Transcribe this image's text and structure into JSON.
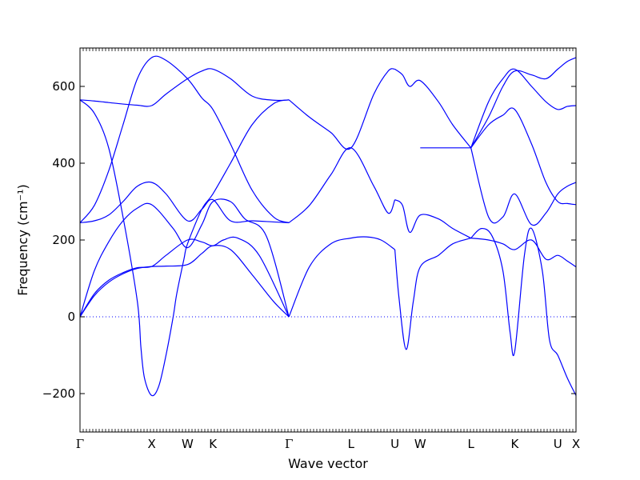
{
  "chart_data": {
    "type": "line",
    "title": "",
    "xlabel": "Wave vector",
    "ylabel": "Frequency (cm⁻¹)",
    "ylim": [
      -300,
      700
    ],
    "yticks": [
      -200,
      0,
      200,
      400,
      600
    ],
    "ytick_labels": [
      "−200",
      "0",
      "200",
      "400",
      "600"
    ],
    "grid": false,
    "legend": "none",
    "line_color": "#0000ff",
    "zero_line_color": "#0000ff",
    "special_points": [
      {
        "label": "Γ",
        "x": 0.0
      },
      {
        "label": "X",
        "x": 1.0
      },
      {
        "label": "W",
        "x": 1.5
      },
      {
        "label": "K",
        "x": 1.854
      },
      {
        "label": "Γ",
        "x": 2.915
      },
      {
        "label": "L",
        "x": 3.781
      },
      {
        "label": "U",
        "x": 4.393
      },
      {
        "label": "W",
        "x": 4.747
      },
      {
        "label": "L",
        "x": 5.454
      },
      {
        "label": "K",
        "x": 6.065
      },
      {
        "label": "U",
        "x": 6.666
      },
      {
        "label": "X",
        "x": 6.92
      }
    ],
    "xlim": [
      0.0,
      6.92
    ],
    "series": [
      {
        "x": [
          0.0,
          0.2,
          0.4,
          0.6,
          0.8,
          1.0,
          1.2,
          1.5,
          1.7,
          1.854,
          2.1,
          2.4,
          2.7,
          2.915
        ],
        "values": [
          0,
          55,
          90,
          112,
          126,
          131,
          132,
          136,
          165,
          185,
          175,
          110,
          40,
          0
        ]
      },
      {
        "x": [
          0.0,
          0.2,
          0.4,
          0.6,
          0.8,
          1.0,
          1.2,
          1.5,
          1.7,
          1.854,
          2.0,
          2.2,
          2.5,
          2.915
        ],
        "values": [
          0,
          60,
          95,
          115,
          128,
          131,
          160,
          200,
          195,
          185,
          200,
          205,
          160,
          0
        ]
      },
      {
        "x": [
          0.0,
          0.2,
          0.4,
          0.6,
          0.8,
          1.0,
          1.3,
          1.5,
          1.7,
          1.854,
          2.1,
          2.3,
          2.6,
          2.915
        ],
        "values": [
          0,
          120,
          195,
          250,
          283,
          292,
          230,
          180,
          240,
          300,
          300,
          255,
          210,
          0
        ]
      },
      {
        "x": [
          0.0,
          0.2,
          0.4,
          0.6,
          0.8,
          0.85,
          0.9,
          1.0,
          1.1,
          1.2,
          1.3,
          1.35,
          1.45,
          1.5,
          1.7,
          1.854,
          2.1,
          2.4,
          2.7,
          2.915
        ],
        "values": [
          565,
          530,
          440,
          260,
          40,
          -80,
          -160,
          -205,
          -180,
          -100,
          0,
          60,
          150,
          190,
          280,
          320,
          400,
          500,
          555,
          565
        ]
      },
      {
        "x": [
          0.0,
          0.2,
          0.4,
          0.6,
          0.8,
          1.0,
          1.2,
          1.5,
          1.7,
          1.854,
          2.1,
          2.4,
          2.7,
          2.915
        ],
        "values": [
          565,
          562,
          558,
          554,
          551,
          550,
          580,
          620,
          640,
          645,
          620,
          575,
          564,
          565
        ]
      },
      {
        "x": [
          0.0,
          0.2,
          0.4,
          0.6,
          0.8,
          1.0,
          1.2,
          1.5,
          1.7,
          1.854,
          2.1,
          2.4,
          2.7,
          2.915
        ],
        "values": [
          245,
          290,
          380,
          500,
          620,
          675,
          668,
          620,
          570,
          540,
          450,
          330,
          260,
          245
        ]
      },
      {
        "x": [
          0.0,
          0.2,
          0.4,
          0.6,
          0.8,
          1.0,
          1.2,
          1.5,
          1.7,
          1.854,
          2.1,
          2.4,
          2.7,
          2.915
        ],
        "values": [
          245,
          250,
          265,
          300,
          340,
          350,
          320,
          250,
          280,
          305,
          250,
          250,
          247,
          245
        ]
      },
      {
        "x": [
          2.915,
          3.2,
          3.5,
          3.781,
          4.0,
          4.2,
          4.393
        ],
        "values": [
          0,
          130,
          190,
          205,
          208,
          200,
          175
        ]
      },
      {
        "x": [
          2.915,
          3.2,
          3.5,
          3.781,
          4.1,
          4.3,
          4.393
        ],
        "values": [
          245,
          290,
          370,
          440,
          340,
          270,
          305
        ]
      },
      {
        "x": [
          2.915,
          3.2,
          3.5,
          3.781,
          4.1,
          4.3,
          4.393
        ],
        "values": [
          565,
          520,
          480,
          440,
          580,
          640,
          645
        ]
      },
      {
        "x": [
          4.393,
          4.5,
          4.6,
          4.747,
          5.0,
          5.2,
          5.454
        ],
        "values": [
          645,
          630,
          600,
          615,
          560,
          500,
          440
        ]
      },
      {
        "x": [
          4.393,
          4.5,
          4.6,
          4.747,
          5.0,
          5.2,
          5.454
        ],
        "values": [
          305,
          290,
          220,
          265,
          255,
          230,
          205
        ]
      },
      {
        "x": [
          4.393,
          4.45,
          4.55,
          4.65,
          4.747,
          5.0,
          5.2,
          5.454
        ],
        "values": [
          175,
          50,
          -85,
          40,
          130,
          160,
          190,
          205
        ]
      },
      {
        "x": [
          4.747,
          5.0,
          5.2,
          5.454
        ],
        "values": [
          440,
          440,
          440,
          440
        ]
      },
      {
        "x": [
          5.454,
          5.7,
          5.9,
          6.065,
          6.3,
          6.5,
          6.666,
          6.8,
          6.92
        ],
        "values": [
          205,
          200,
          190,
          175,
          200,
          150,
          160,
          145,
          130
        ]
      },
      {
        "x": [
          5.454,
          5.6,
          5.75,
          5.9,
          6.0,
          6.065,
          6.2,
          6.3,
          6.45,
          6.55,
          6.666,
          6.8,
          6.92
        ],
        "values": [
          205,
          230,
          210,
          120,
          -40,
          -90,
          160,
          230,
          120,
          -60,
          -100,
          -160,
          -205
        ]
      },
      {
        "x": [
          5.454,
          5.7,
          5.9,
          6.065,
          6.3,
          6.5,
          6.666,
          6.8,
          6.92
        ],
        "values": [
          440,
          260,
          260,
          320,
          240,
          270,
          320,
          340,
          350
        ]
      },
      {
        "x": [
          5.454,
          5.7,
          5.9,
          6.065,
          6.3,
          6.5,
          6.666,
          6.8,
          6.92
        ],
        "values": [
          440,
          500,
          525,
          540,
          450,
          350,
          300,
          295,
          292
        ]
      },
      {
        "x": [
          5.454,
          5.7,
          5.9,
          6.065,
          6.3,
          6.5,
          6.666,
          6.8,
          6.92
        ],
        "values": [
          440,
          560,
          620,
          645,
          600,
          560,
          540,
          548,
          550
        ]
      },
      {
        "x": [
          5.454,
          5.7,
          5.9,
          6.065,
          6.3,
          6.5,
          6.666,
          6.8,
          6.92
        ],
        "values": [
          440,
          520,
          600,
          640,
          630,
          620,
          645,
          665,
          675
        ]
      }
    ]
  }
}
